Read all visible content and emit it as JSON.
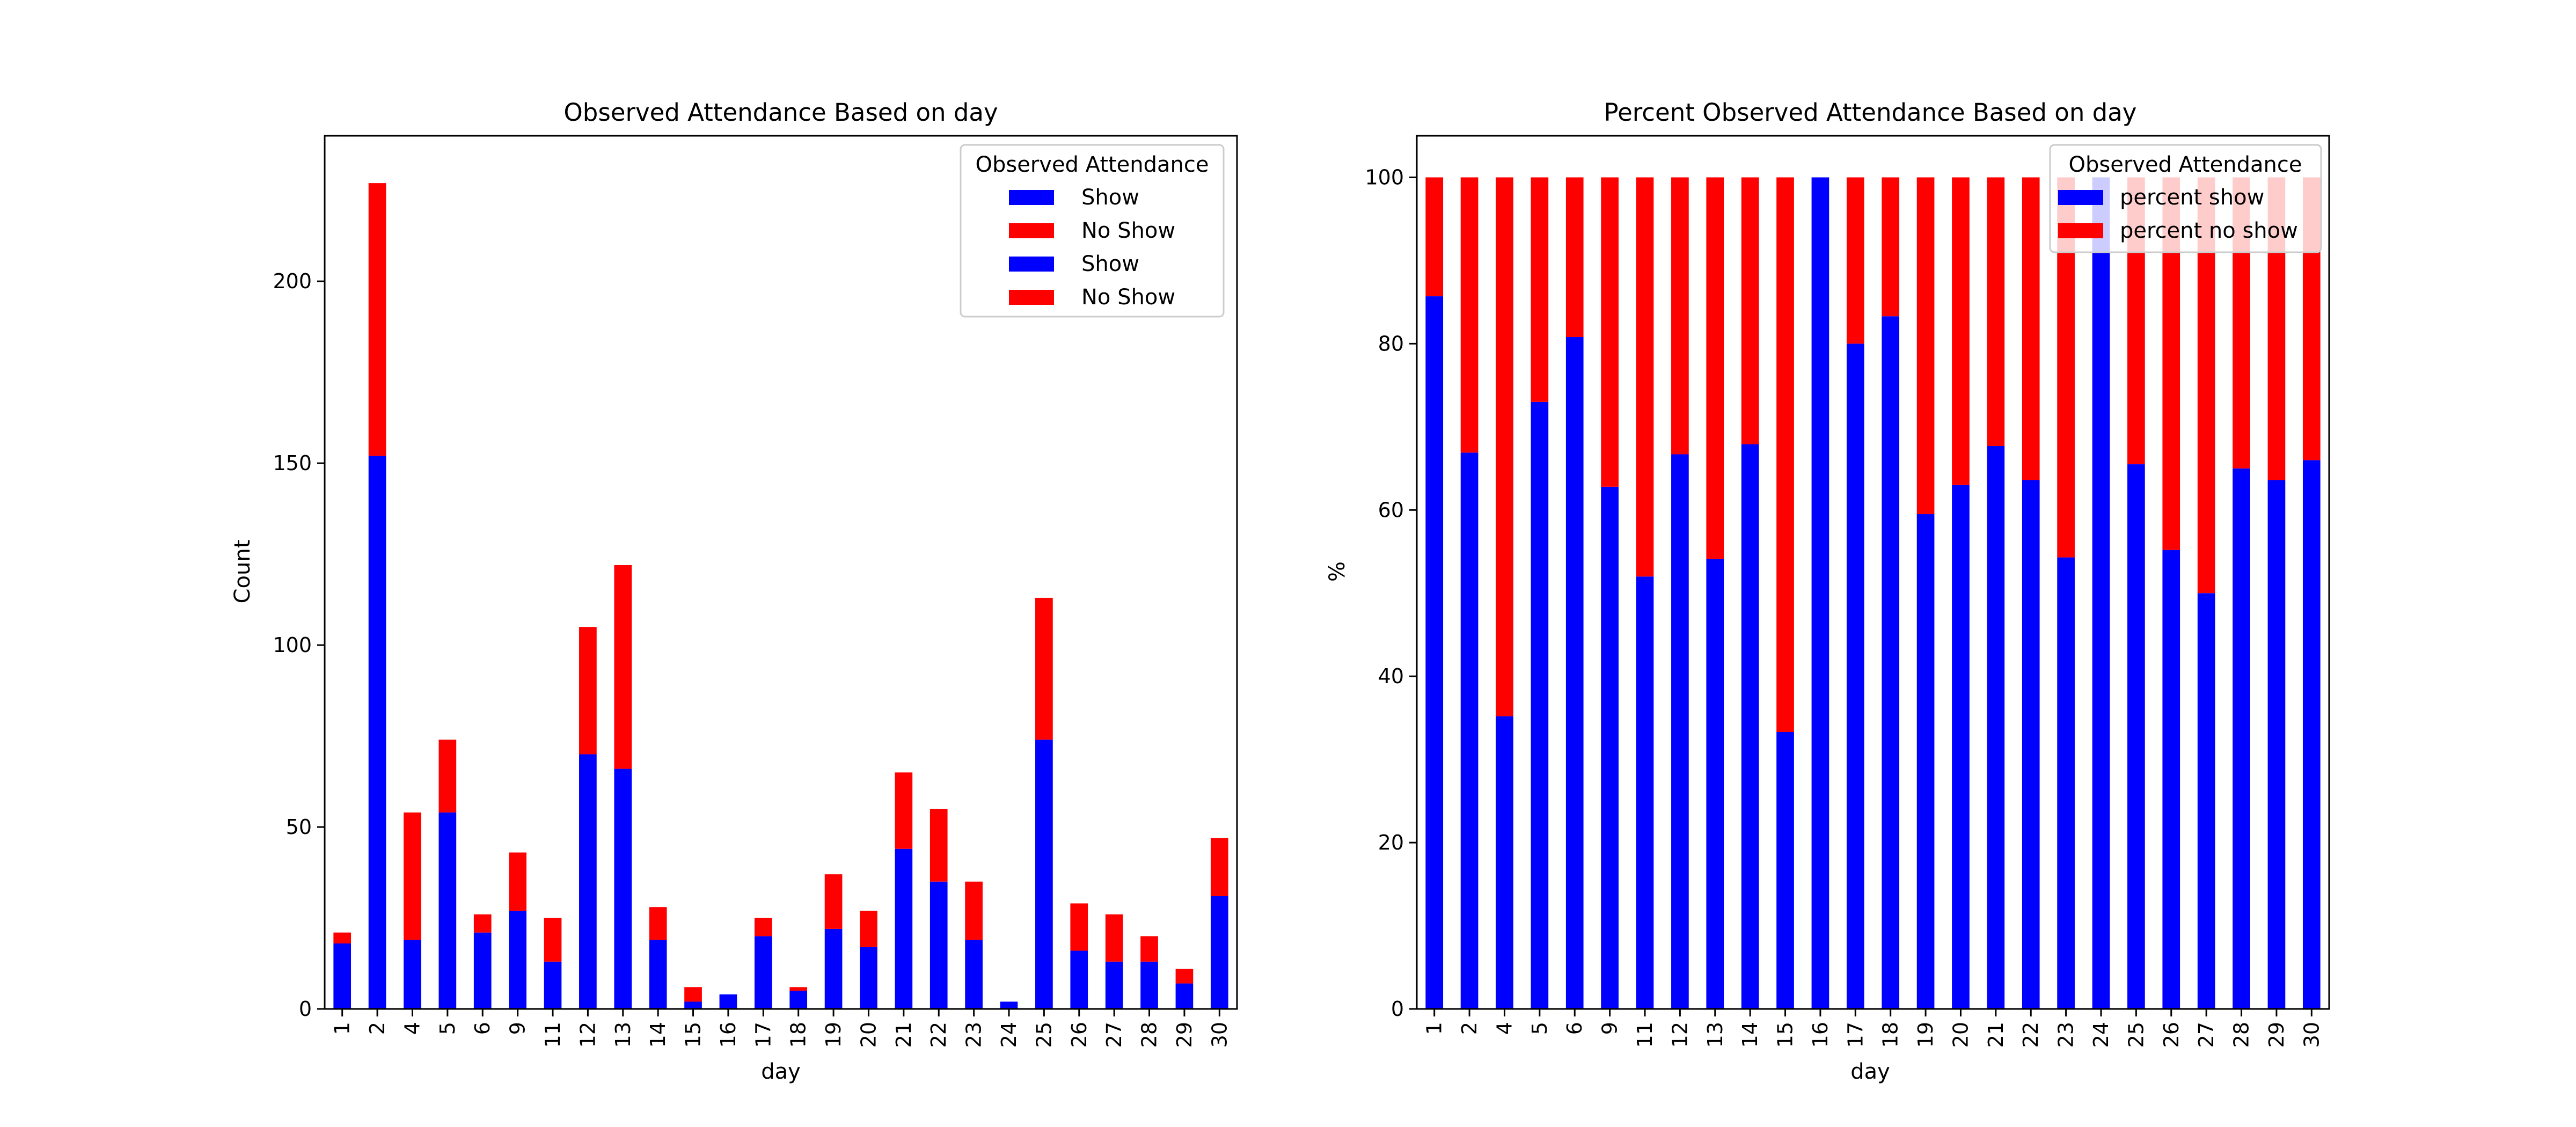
{
  "chart_data": [
    {
      "type": "bar",
      "stacked": true,
      "title": "Observed Attendance Based on day",
      "xlabel": "day",
      "ylabel": "Count",
      "ylim": [
        0,
        240
      ],
      "yticks": [
        0,
        50,
        100,
        150,
        200
      ],
      "categories": [
        "1",
        "2",
        "4",
        "5",
        "6",
        "9",
        "11",
        "12",
        "13",
        "14",
        "15",
        "16",
        "17",
        "18",
        "19",
        "20",
        "21",
        "22",
        "23",
        "24",
        "25",
        "26",
        "27",
        "28",
        "29",
        "30"
      ],
      "series": [
        {
          "name": "Show",
          "color": "#0000ff",
          "values": [
            18,
            152,
            19,
            54,
            21,
            27,
            13,
            70,
            66,
            19,
            2,
            4,
            20,
            5,
            22,
            17,
            44,
            35,
            19,
            2,
            74,
            16,
            13,
            13,
            7,
            31
          ]
        },
        {
          "name": "No Show",
          "color": "#ff0000",
          "values": [
            3,
            75,
            35,
            20,
            5,
            16,
            12,
            35,
            56,
            9,
            4,
            0,
            5,
            1,
            15,
            10,
            21,
            20,
            16,
            0,
            39,
            13,
            13,
            7,
            4,
            16
          ]
        }
      ],
      "legend": {
        "title": "Observed Attendance",
        "placement": "top-right",
        "entries": [
          {
            "label": "Show",
            "color": "#0000ff"
          },
          {
            "label": "No Show",
            "color": "#ff0000"
          },
          {
            "label": "Show",
            "color": "#0000ff"
          },
          {
            "label": "No Show",
            "color": "#ff0000"
          }
        ]
      }
    },
    {
      "type": "bar",
      "stacked": true,
      "title": "Percent Observed Attendance Based on day",
      "xlabel": "day",
      "ylabel": "%",
      "ylim": [
        0,
        105
      ],
      "yticks": [
        0,
        20,
        40,
        60,
        80,
        100
      ],
      "categories": [
        "1",
        "2",
        "4",
        "5",
        "6",
        "9",
        "11",
        "12",
        "13",
        "14",
        "15",
        "16",
        "17",
        "18",
        "19",
        "20",
        "21",
        "22",
        "23",
        "24",
        "25",
        "26",
        "27",
        "28",
        "29",
        "30"
      ],
      "series": [
        {
          "name": "percent show",
          "color": "#0000ff",
          "values": [
            85.7,
            66.9,
            35.2,
            73.0,
            80.8,
            62.8,
            52.0,
            66.7,
            54.1,
            67.9,
            33.3,
            100,
            80.0,
            83.3,
            59.5,
            63.0,
            67.7,
            63.6,
            54.3,
            100,
            65.5,
            55.2,
            50.0,
            65.0,
            63.6,
            66.0
          ]
        },
        {
          "name": "percent no show",
          "color": "#ff0000",
          "values": [
            14.3,
            33.1,
            64.8,
            27.0,
            19.2,
            37.2,
            48.0,
            33.3,
            45.9,
            32.1,
            66.7,
            0,
            20.0,
            16.7,
            40.5,
            37.0,
            32.3,
            36.4,
            45.7,
            0,
            34.5,
            44.8,
            50.0,
            35.0,
            36.4,
            34.0
          ]
        }
      ],
      "legend": {
        "title": "Observed Attendance",
        "placement": "top-right",
        "entries": [
          {
            "label": "percent show",
            "color": "#0000ff"
          },
          {
            "label": "percent no show",
            "color": "#ff0000"
          }
        ]
      }
    }
  ]
}
